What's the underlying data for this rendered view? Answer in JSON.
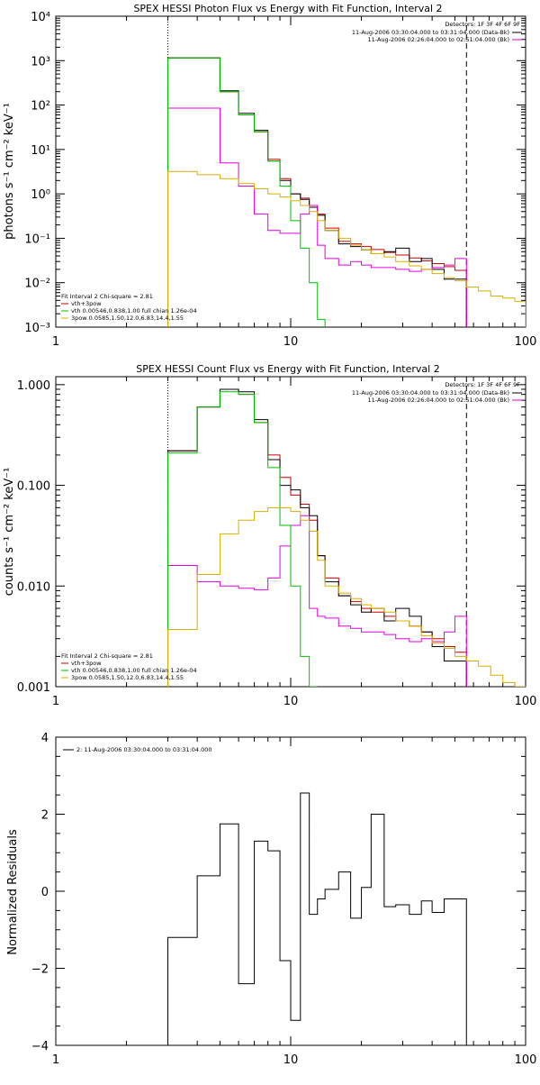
{
  "chart_data": [
    {
      "type": "line",
      "title": "SPEX HESSI Photon Flux vs Energy with Fit Function, Interval 2",
      "ylabel": "photons s⁻¹ cm⁻² keV⁻¹",
      "xlabel": "",
      "xscale": "log",
      "yscale": "log",
      "xlim": [
        1,
        100
      ],
      "ylim": [
        0.001,
        10000
      ],
      "xticks": [
        "1",
        "10",
        "100"
      ],
      "yticks": [
        "10⁻³",
        "10⁻²",
        "10⁻¹",
        "10⁰",
        "10¹",
        "10²",
        "10³",
        "10⁴"
      ],
      "vlines": [
        {
          "x": 3,
          "style": "dotted"
        },
        {
          "x": 56,
          "style": "dashed"
        }
      ],
      "legend_top": {
        "detectors": "Detectors: 1F 3F 4F 6F 9F",
        "lines": [
          {
            "text": "11-Aug-2006 03:30:04.000 to 03:31:04.000 (Data-Bk)",
            "color": "#000000"
          },
          {
            "text": "11-Aug-2006 02:26:04.000 to 02:51:04.000 (Bk)",
            "color": "#e000e0"
          }
        ]
      },
      "legend_bottom": [
        {
          "text": "Fit Interval 2   Chi-square = 2.81",
          "color": "#000000"
        },
        {
          "text": "vth+3pow",
          "color": "#cc0000"
        },
        {
          "text": "vth 0.00546,0.838,1.00   full chian 1.26e-04",
          "color": "#00c000"
        },
        {
          "text": "3pow 0.0585,1.50,12.0,6.83,14.4,1.55",
          "color": "#d8b000"
        }
      ],
      "series": [
        {
          "color": "#cc0000",
          "edges": [
            3,
            4,
            5,
            6,
            7,
            8,
            9,
            10,
            11,
            12,
            13,
            14,
            16,
            18,
            20,
            22,
            25,
            28,
            32,
            36,
            40,
            45,
            50,
            56
          ],
          "values": [
            1150,
            1150,
            200,
            60,
            25,
            6,
            2.2,
            1.0,
            0.8,
            0.55,
            0.35,
            0.17,
            0.085,
            0.075,
            0.065,
            0.056,
            0.048,
            0.042,
            0.036,
            0.031,
            0.027,
            0.023,
            0.019
          ]
        },
        {
          "color": "#000000",
          "edges": [
            3,
            4,
            5,
            6,
            7,
            8,
            9,
            10,
            11,
            12,
            13,
            14,
            16,
            18,
            20,
            22,
            25,
            28,
            32,
            36,
            40,
            45,
            50,
            56
          ],
          "values": [
            1150,
            1150,
            210,
            65,
            27,
            5.5,
            2.0,
            1.0,
            0.75,
            0.5,
            0.33,
            0.15,
            0.075,
            0.065,
            0.055,
            0.045,
            0.05,
            0.06,
            0.03,
            0.035,
            0.02,
            0.012,
            0.012
          ]
        },
        {
          "color": "#e000e0",
          "edges": [
            3,
            4,
            5,
            6,
            7,
            8,
            9,
            10,
            11,
            12,
            13,
            14,
            16,
            18,
            20,
            22,
            25,
            28,
            32,
            36,
            40,
            45,
            50,
            56
          ],
          "values": [
            85,
            85,
            5,
            1.5,
            0.35,
            0.15,
            0.13,
            0.13,
            0.35,
            0.55,
            0.07,
            0.035,
            0.025,
            0.03,
            0.025,
            0.022,
            0.022,
            0.02,
            0.018,
            0.02,
            0.022,
            0.025,
            0.035
          ]
        },
        {
          "color": "#00c000",
          "edges": [
            3,
            4,
            5,
            6,
            7,
            8,
            9,
            10,
            11,
            12,
            13,
            14
          ],
          "values": [
            1150,
            1150,
            200,
            60,
            25,
            5.5,
            1.5,
            0.25,
            0.06,
            0.01,
            0.0015
          ]
        },
        {
          "color": "#d8b000",
          "edges": [
            3,
            4,
            5,
            6,
            7,
            8,
            9,
            10,
            11,
            12,
            13,
            14,
            16,
            18,
            20,
            22,
            25,
            28,
            32,
            36,
            40,
            45,
            50,
            56,
            63,
            71,
            80,
            90,
            100
          ],
          "values": [
            3.2,
            2.7,
            2.2,
            1.7,
            1.3,
            1.0,
            0.85,
            0.7,
            0.55,
            0.4,
            0.25,
            0.15,
            0.1,
            0.07,
            0.055,
            0.045,
            0.038,
            0.03,
            0.024,
            0.02,
            0.016,
            0.013,
            0.011,
            0.008,
            0.0065,
            0.005,
            0.0045,
            0.0038
          ]
        }
      ]
    },
    {
      "type": "line",
      "title": "SPEX HESSI Count Flux vs Energy with Fit Function, Interval 2",
      "ylabel": "counts s⁻¹ cm⁻² keV⁻¹",
      "xlabel": "",
      "xscale": "log",
      "yscale": "log",
      "xlim": [
        1,
        100
      ],
      "ylim": [
        0.001,
        1.2
      ],
      "xticks": [
        "1",
        "10",
        "100"
      ],
      "yticks": [
        "0.001",
        "0.010",
        "0.100",
        "1.000"
      ],
      "vlines": [
        {
          "x": 3,
          "style": "dotted"
        },
        {
          "x": 56,
          "style": "dashed"
        }
      ],
      "legend_top": {
        "detectors": "Detectors: 1F 3F 4F 6F 9F",
        "lines": [
          {
            "text": "11-Aug-2006 03:30:04.000 to 03:31:04.000 (Data-Bk)",
            "color": "#000000"
          },
          {
            "text": "11-Aug-2006 02:26:04.000 to 02:51:04.000 (Bk)",
            "color": "#e000e0"
          }
        ]
      },
      "legend_bottom": [
        {
          "text": "Fit Interval 2   Chi-square = 2.81",
          "color": "#000000"
        },
        {
          "text": "vth+3pow",
          "color": "#cc0000"
        },
        {
          "text": "vth 0.00546,0.838,1.00   full chian 1.26e-04",
          "color": "#00c000"
        },
        {
          "text": "3pow 0.0585,1.50,12.0,6.83,14.4,1.55",
          "color": "#d8b000"
        }
      ],
      "series": [
        {
          "color": "#cc0000",
          "edges": [
            3,
            4,
            5,
            6,
            7,
            8,
            9,
            10,
            11,
            12,
            13,
            14,
            16,
            18,
            20,
            22,
            25,
            28,
            32,
            36,
            40,
            45,
            50,
            56
          ],
          "values": [
            0.22,
            0.6,
            0.9,
            0.8,
            0.42,
            0.2,
            0.12,
            0.08,
            0.065,
            0.045,
            0.02,
            0.012,
            0.008,
            0.007,
            0.006,
            0.0055,
            0.005,
            0.0045,
            0.004,
            0.0035,
            0.003,
            0.0025,
            0.0022
          ]
        },
        {
          "color": "#000000",
          "edges": [
            3,
            4,
            5,
            6,
            7,
            8,
            9,
            10,
            11,
            12,
            13,
            14,
            16,
            18,
            20,
            22,
            25,
            28,
            32,
            36,
            40,
            45,
            50,
            56
          ],
          "values": [
            0.22,
            0.6,
            0.9,
            0.85,
            0.45,
            0.18,
            0.1,
            0.09,
            0.06,
            0.05,
            0.02,
            0.011,
            0.008,
            0.0065,
            0.0055,
            0.006,
            0.0045,
            0.006,
            0.005,
            0.0035,
            0.0025,
            0.0018,
            0.0018
          ]
        },
        {
          "color": "#e000e0",
          "edges": [
            3,
            4,
            5,
            6,
            7,
            8,
            9,
            10,
            11,
            12,
            13,
            14,
            16,
            18,
            20,
            22,
            25,
            28,
            32,
            36,
            40,
            45,
            50,
            56
          ],
          "values": [
            0.016,
            0.011,
            0.01,
            0.0095,
            0.0092,
            0.012,
            0.025,
            0.04,
            0.05,
            0.006,
            0.005,
            0.0048,
            0.004,
            0.0038,
            0.0035,
            0.0035,
            0.0033,
            0.003,
            0.0028,
            0.003,
            0.0028,
            0.0035,
            0.005
          ]
        },
        {
          "color": "#00c000",
          "edges": [
            3,
            4,
            5,
            6,
            7,
            8,
            9,
            10,
            11,
            12,
            13
          ],
          "values": [
            0.21,
            0.6,
            0.85,
            0.8,
            0.42,
            0.15,
            0.04,
            0.01,
            0.002,
            0.001
          ]
        },
        {
          "color": "#d8b000",
          "edges": [
            3,
            4,
            5,
            6,
            7,
            8,
            9,
            10,
            11,
            12,
            13,
            14,
            16,
            18,
            20,
            22,
            25,
            28,
            32,
            36,
            40,
            45,
            50,
            56,
            63,
            71,
            80,
            90,
            100
          ],
          "values": [
            0.0037,
            0.013,
            0.033,
            0.045,
            0.055,
            0.06,
            0.06,
            0.055,
            0.045,
            0.035,
            0.018,
            0.01,
            0.0085,
            0.0075,
            0.0065,
            0.006,
            0.0055,
            0.0045,
            0.004,
            0.0032,
            0.0027,
            0.0024,
            0.002,
            0.0018,
            0.0016,
            0.0013,
            0.0011,
            0.001
          ]
        }
      ]
    },
    {
      "type": "line",
      "title": "",
      "ylabel": "Normalized Residuals",
      "xlabel": "",
      "xscale": "log",
      "yscale": "linear",
      "xlim": [
        1,
        100
      ],
      "ylim": [
        -4,
        4
      ],
      "xticks": [
        "1",
        "10",
        "100"
      ],
      "yticks": [
        "-4",
        "-2",
        "0",
        "2",
        "4"
      ],
      "legend_top_left": "2: 11-Aug-2006 03:30:04.000 to 03:31:04.000",
      "series": [
        {
          "color": "#000000",
          "edges": [
            3,
            3.5,
            4,
            5,
            6,
            7,
            8,
            9,
            10,
            11,
            12,
            13,
            14,
            16,
            18,
            20,
            22,
            25,
            28,
            32,
            36,
            40,
            45,
            50,
            56
          ],
          "values": [
            -1.2,
            -1.2,
            0.4,
            1.75,
            -2.4,
            1.3,
            1.05,
            -1.8,
            -3.35,
            2.55,
            -0.6,
            -0.2,
            0.05,
            0.5,
            -0.7,
            0.1,
            2.0,
            -0.4,
            -0.35,
            -0.6,
            -0.25,
            -0.55,
            -0.2,
            -0.2
          ]
        }
      ]
    }
  ]
}
